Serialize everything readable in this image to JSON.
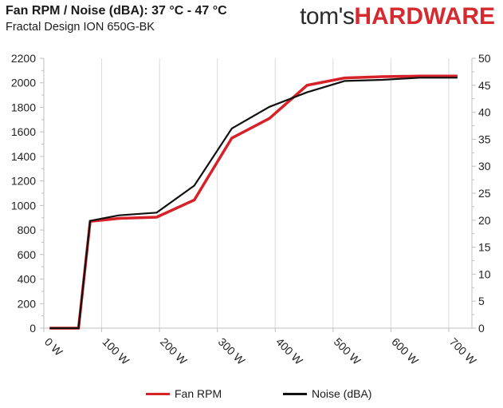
{
  "header": {
    "title": "Fan RPM / Noise (dBA): 37 °C - 47 °C",
    "subtitle": "Fractal Design ION 650G-BK",
    "logo_part1": "tom's",
    "logo_part2": "HARDWARE"
  },
  "colors": {
    "fan_rpm": "#d62128",
    "noise": "#111111",
    "grid": "#d9d9d9",
    "logo_red": "#d52a2f"
  },
  "chart_data": {
    "type": "line",
    "x": [
      10,
      60,
      80,
      130,
      195,
      260,
      325,
      390,
      455,
      520,
      585,
      650,
      715
    ],
    "x_tick_labels": [
      "0 W",
      "100 W",
      "200 W",
      "300 W",
      "400 W",
      "500 W",
      "600 W",
      "700 W"
    ],
    "x_ticks": [
      0,
      100,
      200,
      300,
      400,
      500,
      600,
      700
    ],
    "xlim": [
      0,
      740
    ],
    "series": [
      {
        "name": "Fan RPM",
        "axis": "left",
        "color": "#d62128",
        "values": [
          0,
          0,
          870,
          895,
          905,
          1045,
          1550,
          1710,
          1980,
          2040,
          2050,
          2055,
          2055
        ]
      },
      {
        "name": "Noise (dBA)",
        "axis": "right",
        "color": "#111111",
        "values": [
          0,
          0,
          19.9,
          20.9,
          21.4,
          26.4,
          37.0,
          41.0,
          43.7,
          45.8,
          46.0,
          46.4,
          46.4
        ]
      }
    ],
    "ylim_left": [
      0,
      2200
    ],
    "y_left_ticks": [
      0,
      200,
      400,
      600,
      800,
      1000,
      1200,
      1400,
      1600,
      1800,
      2000,
      2200
    ],
    "ylim_right": [
      0,
      50
    ],
    "y_right_ticks": [
      0,
      5,
      10,
      15,
      20,
      25,
      30,
      35,
      40,
      45,
      50
    ],
    "grid": "vertical",
    "legend_position": "bottom"
  }
}
